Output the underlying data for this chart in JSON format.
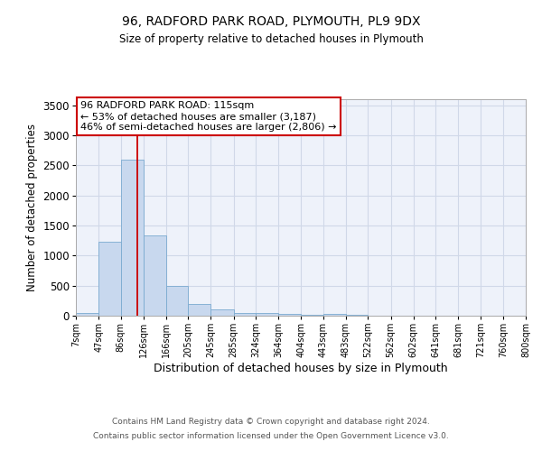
{
  "title_line1": "96, RADFORD PARK ROAD, PLYMOUTH, PL9 9DX",
  "title_line2": "Size of property relative to detached houses in Plymouth",
  "xlabel": "Distribution of detached houses by size in Plymouth",
  "ylabel": "Number of detached properties",
  "annotation_line1": "96 RADFORD PARK ROAD: 115sqm",
  "annotation_line2": "← 53% of detached houses are smaller (3,187)",
  "annotation_line3": "46% of semi-detached houses are larger (2,806) →",
  "footer_line1": "Contains HM Land Registry data © Crown copyright and database right 2024.",
  "footer_line2": "Contains public sector information licensed under the Open Government Licence v3.0.",
  "bar_edges": [
    7,
    47,
    86,
    126,
    166,
    205,
    245,
    285,
    324,
    364,
    404,
    443,
    483,
    522,
    562,
    602,
    641,
    681,
    721,
    760,
    800
  ],
  "bar_heights": [
    50,
    1230,
    2590,
    1340,
    490,
    200,
    110,
    50,
    40,
    25,
    15,
    30,
    10,
    0,
    0,
    0,
    0,
    0,
    0,
    0
  ],
  "bar_color": "#c8d8ee",
  "bar_edge_color": "#7aaad0",
  "property_line_x": 115,
  "property_line_color": "#cc0000",
  "ylim": [
    0,
    3600
  ],
  "yticks": [
    0,
    500,
    1000,
    1500,
    2000,
    2500,
    3000,
    3500
  ],
  "grid_color": "#d0d8e8",
  "bg_color": "#eef2fa",
  "annotation_box_color": "#cc0000",
  "tick_labels": [
    "7sqm",
    "47sqm",
    "86sqm",
    "126sqm",
    "166sqm",
    "205sqm",
    "245sqm",
    "285sqm",
    "324sqm",
    "364sqm",
    "404sqm",
    "443sqm",
    "483sqm",
    "522sqm",
    "562sqm",
    "602sqm",
    "641sqm",
    "681sqm",
    "721sqm",
    "760sqm",
    "800sqm"
  ]
}
